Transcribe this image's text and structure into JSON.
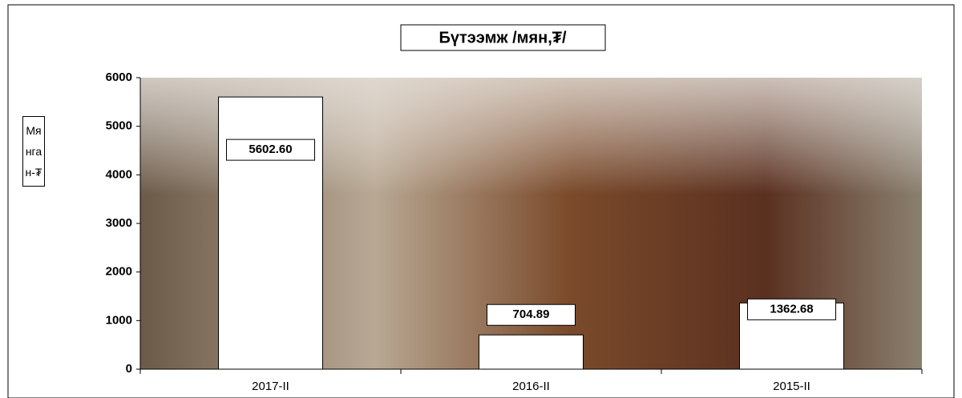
{
  "chart_data": {
    "type": "bar",
    "title": "Бүтээмж /мян,₮/",
    "y_label": "Мянган-₮",
    "categories": [
      "2017-II",
      "2016-II",
      "2015-II"
    ],
    "values": [
      5602.6,
      704.89,
      1362.68
    ],
    "value_labels": [
      "5602.60",
      "704.89",
      "1362.68"
    ],
    "color": "#ffffff",
    "ylim": [
      0,
      6000
    ],
    "yticks": [
      0,
      1000,
      2000,
      3000,
      4000,
      5000,
      6000
    ]
  }
}
